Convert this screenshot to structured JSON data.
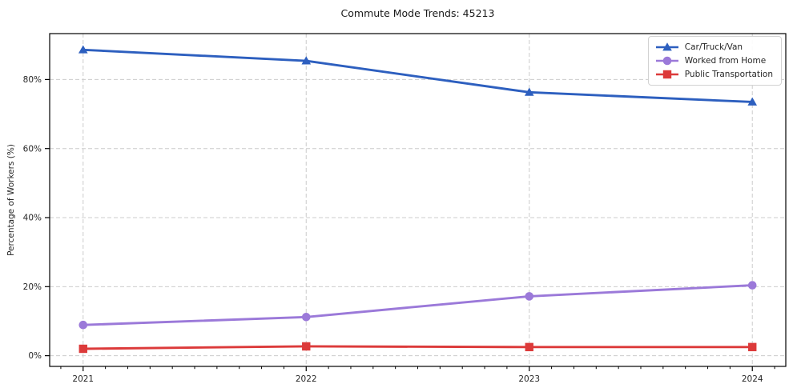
{
  "chart_data": {
    "type": "line",
    "title": "Commute Mode Trends: 45213",
    "xlabel": "",
    "ylabel": "Percentage of Workers (%)",
    "categories": [
      2021,
      2022,
      2023,
      2024
    ],
    "x_tick_labels": [
      "2021",
      "2022",
      "2023",
      "2024"
    ],
    "y_ticks": [
      0,
      20,
      40,
      60,
      80
    ],
    "y_tick_labels": [
      "0%",
      "20%",
      "40%",
      "60%",
      "80%"
    ],
    "xlim": [
      2020.85,
      2024.15
    ],
    "ylim": [
      -3.1,
      93.3
    ],
    "grid": "dashed",
    "grid_color": "#cccccc",
    "spine_color": "#000000",
    "legend_position": "upper-right",
    "series": [
      {
        "name": "Car/Truck/Van",
        "color": "#2d5fbf",
        "marker": "triangle",
        "values": [
          88.6,
          85.4,
          76.3,
          73.5
        ]
      },
      {
        "name": "Worked from Home",
        "color": "#9b79d9",
        "marker": "circle",
        "values": [
          8.9,
          11.2,
          17.2,
          20.4
        ]
      },
      {
        "name": "Public Transportation",
        "color": "#dc3a3a",
        "marker": "square",
        "values": [
          2.0,
          2.7,
          2.5,
          2.5
        ]
      }
    ]
  }
}
